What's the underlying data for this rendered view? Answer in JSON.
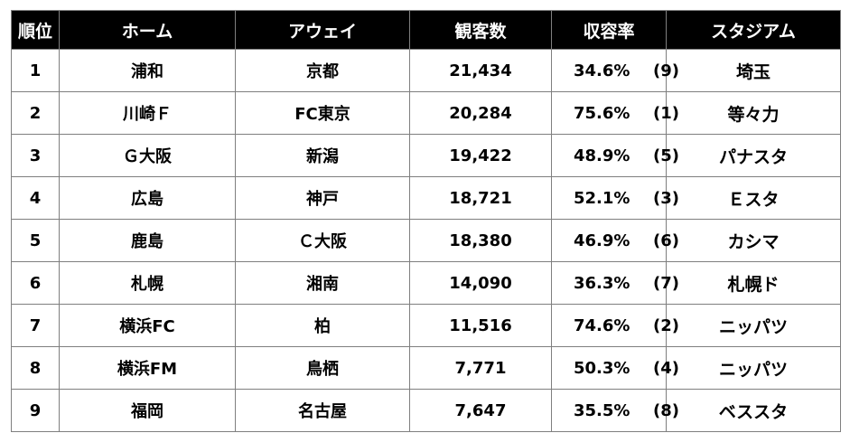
{
  "table": {
    "headers": {
      "rank": "順位",
      "home": "ホーム",
      "away": "アウェイ",
      "attendance": "観客数",
      "capacity_rate": "収容率",
      "stadium": "スタジアム"
    },
    "rows": [
      {
        "rank": "1",
        "home": "浦和",
        "away": "京都",
        "attendance": "21,434",
        "rate": "34.6%",
        "rate_rank": "(9)",
        "stadium": "埼玉"
      },
      {
        "rank": "2",
        "home": "川崎Ｆ",
        "away": "FC東京",
        "attendance": "20,284",
        "rate": "75.6%",
        "rate_rank": "(1)",
        "stadium": "等々力"
      },
      {
        "rank": "3",
        "home": "Ｇ大阪",
        "away": "新潟",
        "attendance": "19,422",
        "rate": "48.9%",
        "rate_rank": "(5)",
        "stadium": "パナスタ"
      },
      {
        "rank": "4",
        "home": "広島",
        "away": "神戸",
        "attendance": "18,721",
        "rate": "52.1%",
        "rate_rank": "(3)",
        "stadium": "Ｅスタ"
      },
      {
        "rank": "5",
        "home": "鹿島",
        "away": "Ｃ大阪",
        "attendance": "18,380",
        "rate": "46.9%",
        "rate_rank": "(6)",
        "stadium": "カシマ"
      },
      {
        "rank": "6",
        "home": "札幌",
        "away": "湘南",
        "attendance": "14,090",
        "rate": "36.3%",
        "rate_rank": "(7)",
        "stadium": "札幌ド"
      },
      {
        "rank": "7",
        "home": "横浜FC",
        "away": "柏",
        "attendance": "11,516",
        "rate": "74.6%",
        "rate_rank": "(2)",
        "stadium": "ニッパツ"
      },
      {
        "rank": "8",
        "home": "横浜FM",
        "away": "鳥栖",
        "attendance": "7,771",
        "rate": "50.3%",
        "rate_rank": "(4)",
        "stadium": "ニッパツ"
      },
      {
        "rank": "9",
        "home": "福岡",
        "away": "名古屋",
        "attendance": "7,647",
        "rate": "35.5%",
        "rate_rank": "(8)",
        "stadium": "ベススタ"
      }
    ]
  }
}
